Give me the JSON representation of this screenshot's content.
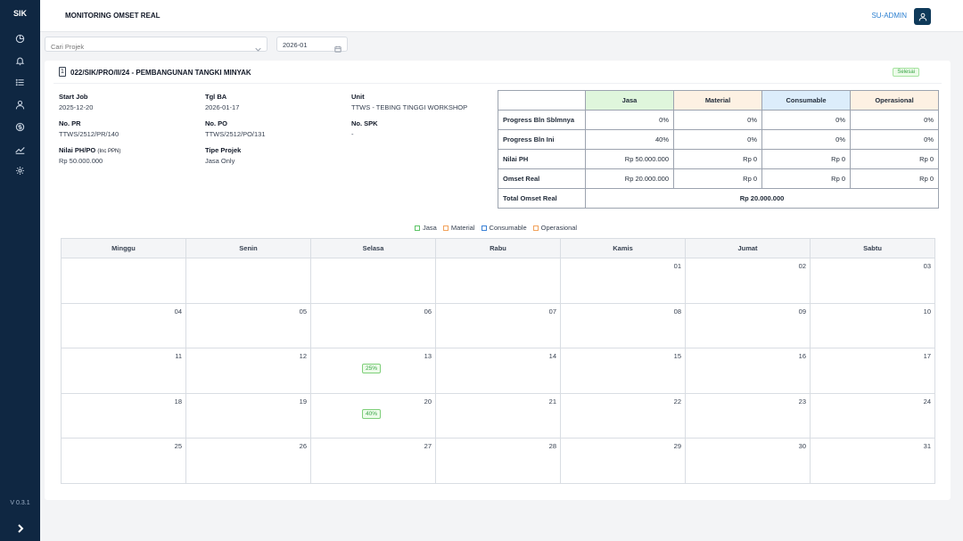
{
  "app": {
    "brand": "SIK",
    "version": "V 0.3.1",
    "page_title": "MONITORING OMSET REAL",
    "user": "SU-ADMIN"
  },
  "sidebar": {
    "items": [
      {
        "icon": "dashboard-icon"
      },
      {
        "icon": "bell-icon"
      },
      {
        "icon": "list-icon"
      },
      {
        "icon": "user-icon"
      },
      {
        "icon": "money-icon"
      },
      {
        "icon": "chart-icon"
      },
      {
        "icon": "gear-icon"
      }
    ]
  },
  "filters": {
    "project_placeholder": "Cari Projek",
    "month": "2026-01"
  },
  "project": {
    "index": "1",
    "title": "022/SIK/PRO/II/24 - PEMBANGUNAN TANGKI MINYAK",
    "status": "Selesai",
    "fields": {
      "start_job_label": "Start Job",
      "start_job": "2025-12-20",
      "tgl_ba_label": "Tgl BA",
      "tgl_ba": "2026-01-17",
      "unit_label": "Unit",
      "unit": "TTWS - TEBING TINGGI WORKSHOP",
      "no_pr_label": "No. PR",
      "no_pr": "TTWS/2512/PR/140",
      "no_po_label": "No. PO",
      "no_po": "TTWS/2512/PO/131",
      "no_spk_label": "No. SPK",
      "no_spk": "-",
      "nilai_label": "Nilai PH/PO",
      "nilai_note": "(Inc PPN)",
      "nilai": "Rp 50.000.000",
      "tipe_label": "Tipe Projek",
      "tipe": "Jasa Only"
    }
  },
  "summary": {
    "headers": [
      "Jasa",
      "Material",
      "Consumable",
      "Operasional"
    ],
    "rows": [
      {
        "label": "Progress Bln Sblmnya",
        "values": [
          "0%",
          "0%",
          "0%",
          "0%"
        ]
      },
      {
        "label": "Progress Bln Ini",
        "values": [
          "40%",
          "0%",
          "0%",
          "0%"
        ]
      },
      {
        "label": "Nilai PH",
        "values": [
          "Rp 50.000.000",
          "Rp 0",
          "Rp 0",
          "Rp 0"
        ]
      },
      {
        "label": "Omset Real",
        "values": [
          "Rp 20.000.000",
          "Rp 0",
          "Rp 0",
          "Rp 0"
        ]
      }
    ],
    "total_label": "Total Omset Real",
    "total_value": "Rp 20.000.000",
    "colors": {
      "Jasa": "#dff6dc",
      "Material": "#fdf1e3",
      "Consumable": "#dcedfb",
      "Operasional": "#fdf1e3"
    }
  },
  "legend": [
    {
      "label": "Jasa",
      "color": "#5cc466"
    },
    {
      "label": "Material",
      "color": "#f2a35c"
    },
    {
      "label": "Consumable",
      "color": "#3b82d6"
    },
    {
      "label": "Operasional",
      "color": "#f2a35c"
    }
  ],
  "calendar": {
    "days": [
      "Minggu",
      "Senin",
      "Selasa",
      "Rabu",
      "Kamis",
      "Jumat",
      "Sabtu"
    ],
    "weeks": [
      [
        "",
        "",
        "",
        "",
        "01",
        "02",
        "03"
      ],
      [
        "04",
        "05",
        "06",
        "07",
        "08",
        "09",
        "10"
      ],
      [
        "11",
        "12",
        "13",
        "14",
        "15",
        "16",
        "17"
      ],
      [
        "18",
        "19",
        "20",
        "21",
        "22",
        "23",
        "24"
      ],
      [
        "25",
        "26",
        "27",
        "28",
        "29",
        "30",
        "31"
      ]
    ],
    "badges": {
      "13": "25%",
      "20": "40%"
    }
  }
}
